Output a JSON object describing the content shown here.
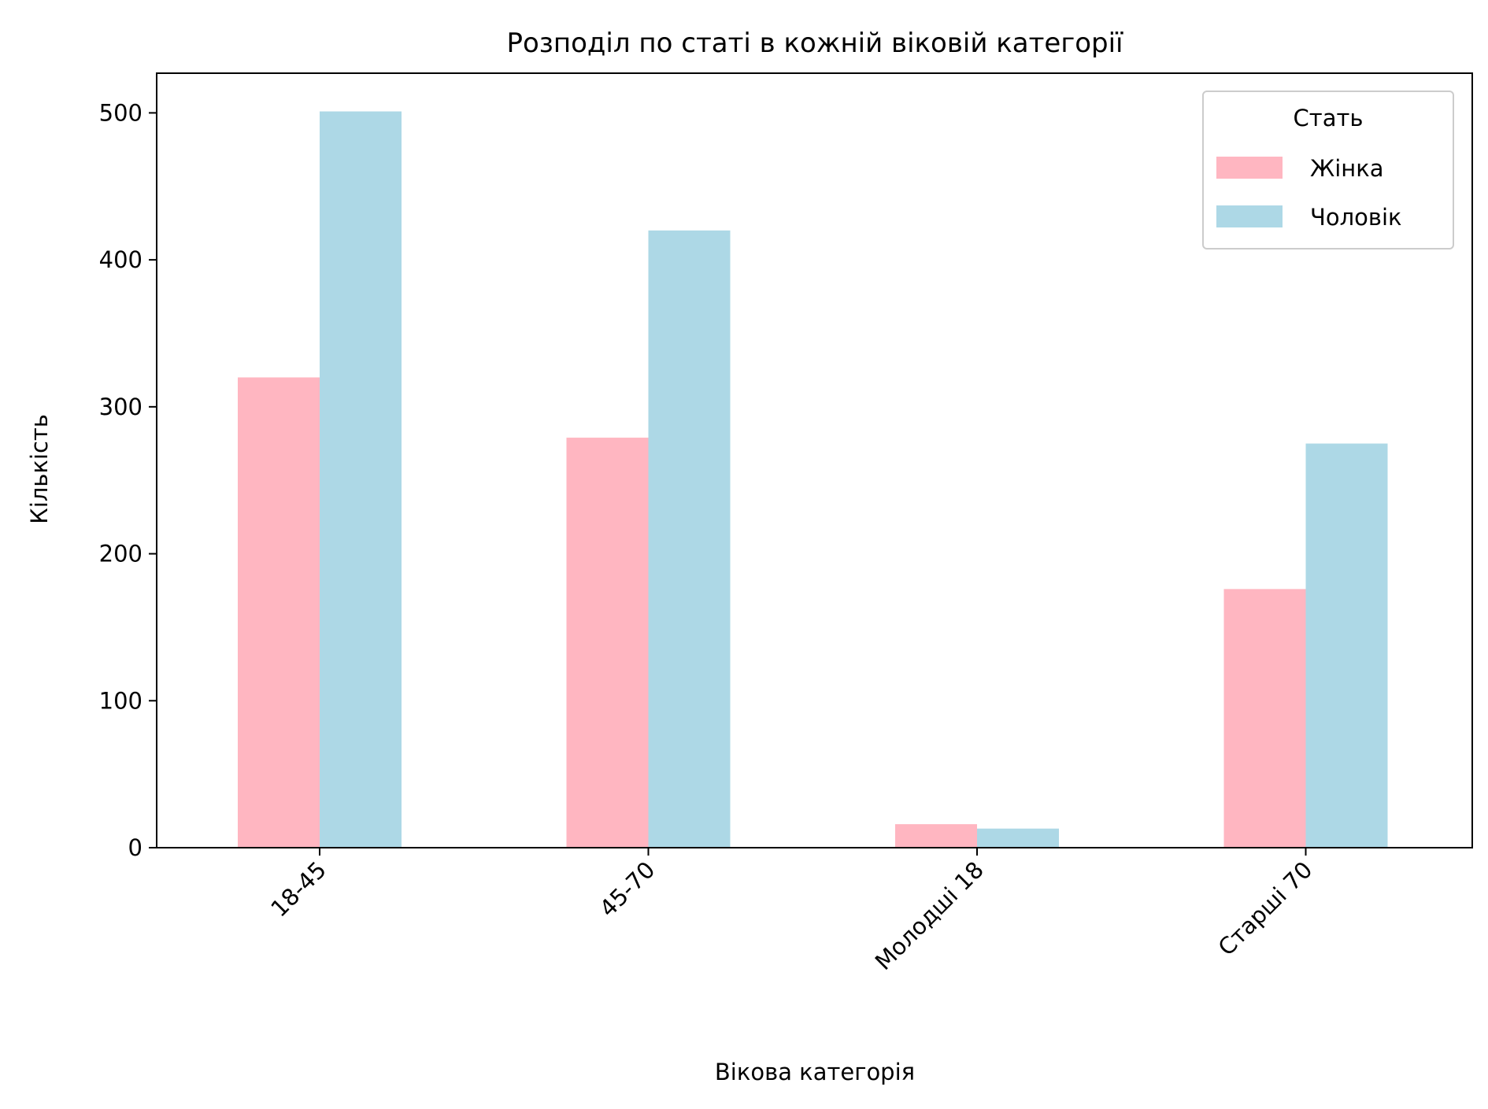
{
  "chart_data": {
    "type": "bar",
    "title": "Розподіл по статі в кожній віковій категорії",
    "xlabel": "Вікова категорія",
    "ylabel": "Кількість",
    "categories": [
      "18-45",
      "45-70",
      "Молодші 18",
      "Старші 70"
    ],
    "series": [
      {
        "name": "Жінка",
        "values": [
          320,
          279,
          16,
          176
        ],
        "color": "#ffb6c1"
      },
      {
        "name": "Чоловік",
        "values": [
          501,
          420,
          13,
          275
        ],
        "color": "#add8e6"
      }
    ],
    "ylim": [
      0,
      527
    ],
    "yticks": [
      0,
      100,
      200,
      300,
      400,
      500
    ],
    "ytick_labels": [
      "0",
      "100",
      "200",
      "300",
      "400",
      "500"
    ],
    "legend": {
      "title": "Стать",
      "position": "top-right"
    },
    "grid": false
  }
}
